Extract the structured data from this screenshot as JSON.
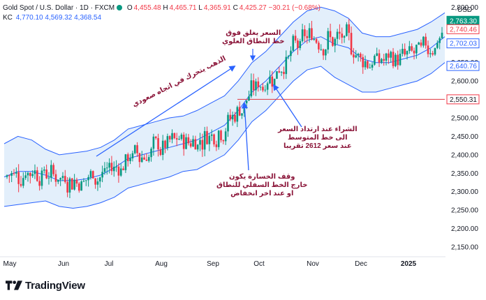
{
  "header": {
    "symbol": "Gold Spot / U.S. Dollar · 1D · FXCM",
    "o_label": "O",
    "o": "4,455.48",
    "h_label": "H",
    "h": "4,465.71",
    "l_label": "L",
    "l": "4,365.91",
    "c_label": "C",
    "c": "4,425.27",
    "change": "−30.21 (−0.68%)",
    "kc_label": "KC",
    "kc_upper": "4,770.10",
    "kc_middle": "4,569.32",
    "kc_lower": "4,368.54"
  },
  "brand": {
    "name": "TradingView"
  },
  "colors": {
    "up": "#089981",
    "down": "#f23645",
    "band": "#2962ff",
    "band_fill": "#e3effb",
    "annotation": "#8b1539",
    "support": "#e0343f"
  },
  "chart_data": {
    "type": "candlestick",
    "currency_label": "USD",
    "x_labels": [
      "May",
      "Jun",
      "Jul",
      "Aug",
      "Sep",
      "Oct",
      "Nov",
      "Dec",
      "2025"
    ],
    "y_ticks": [
      "2,800.00",
      "2,750.00",
      "2,700.00",
      "2,650.00",
      "2,600.00",
      "2,550.00",
      "2,500.00",
      "2,450.00",
      "2,400.00",
      "2,350.00",
      "2,300.00",
      "2,250.00",
      "2,200.00",
      "2,150.00"
    ],
    "ylim": [
      2135,
      2812
    ],
    "price_badges": [
      {
        "value": "2,763.30",
        "type": "last"
      },
      {
        "value": "2,740.46",
        "type": "kc-upper"
      },
      {
        "value": "2,702.03",
        "type": "kc-middle"
      },
      {
        "value": "2,640.76",
        "type": "kc-lower"
      },
      {
        "value": "2,550.31",
        "type": "support"
      }
    ],
    "support_level": 2550.31,
    "keltner_upper": [
      2430,
      2450,
      2440,
      2415,
      2400,
      2405,
      2410,
      2420,
      2440,
      2470,
      2480,
      2490,
      2500,
      2505,
      2520,
      2540,
      2560,
      2600,
      2650,
      2680,
      2720,
      2760,
      2790,
      2800,
      2790,
      2770,
      2730,
      2720,
      2720,
      2730,
      2740,
      2760,
      2785
    ],
    "keltner_middle": [
      2340,
      2355,
      2355,
      2345,
      2330,
      2330,
      2335,
      2345,
      2365,
      2390,
      2400,
      2410,
      2420,
      2430,
      2440,
      2460,
      2480,
      2520,
      2570,
      2600,
      2640,
      2680,
      2710,
      2720,
      2700,
      2690,
      2660,
      2650,
      2650,
      2660,
      2670,
      2690,
      2720
    ],
    "keltner_lower": [
      2260,
      2265,
      2270,
      2275,
      2260,
      2255,
      2260,
      2270,
      2285,
      2310,
      2320,
      2330,
      2340,
      2355,
      2360,
      2380,
      2400,
      2440,
      2490,
      2520,
      2560,
      2600,
      2630,
      2640,
      2610,
      2590,
      2570,
      2570,
      2580,
      2590,
      2600,
      2620,
      2650
    ],
    "annotations": [
      {
        "id": "trend",
        "text": "الذهب يتحرك في اتجاه صعودي"
      },
      {
        "id": "breakout",
        "lines": [
          "السعر يغلق فوق",
          "خط النطاق العلوي"
        ]
      },
      {
        "id": "buy",
        "lines": [
          "الشراء عند ارتداد السعر",
          "الى خط المتوسط",
          "عند سعر 2612 تقريبا"
        ]
      },
      {
        "id": "stop",
        "lines": [
          "وقف الخسارة يكون",
          "خارج الخط السفلي للنطاق",
          "او عند اخر انخفاض"
        ]
      }
    ]
  }
}
